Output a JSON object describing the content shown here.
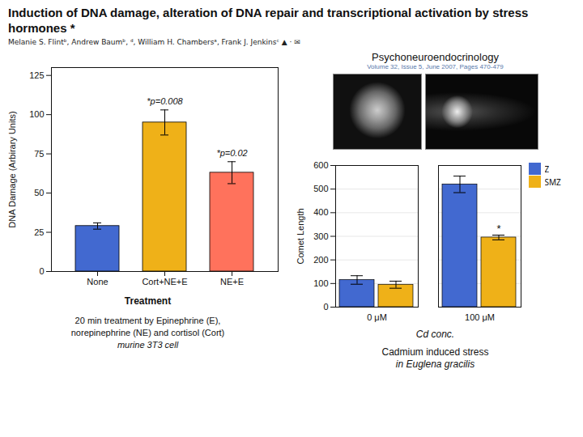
{
  "chart_data": [
    {
      "type": "bar",
      "title": "Induction of DNA damage, alteration of DNA repair and transcriptional activation by stress hormones *",
      "subtitle": "Melanie S. Flintᵇ, Andrew Baumᵇ, ᵈ, William H. Chambersᵃ, Frank J. Jenkinsᶜ  ▲ · ✉",
      "categories": [
        "None",
        "Cort+NE+E",
        "NE+E"
      ],
      "values": [
        29,
        95,
        63
      ],
      "errors": [
        2,
        8,
        7
      ],
      "xlabel": "Treatment",
      "ylabel": "DNA Damage (Arbirary Units)",
      "ylim": [
        0,
        130
      ],
      "yticks": [
        0,
        25,
        50,
        75,
        100,
        125
      ],
      "grid": false,
      "annotations": [
        {
          "text": "*p=0.008",
          "category": "Cort+NE+E"
        },
        {
          "text": "*p=0.02",
          "category": "NE+E"
        }
      ],
      "caption": [
        "20 min treatment by Epinephrine (E),",
        "norepinephrine (NE) and cortisol (Cort)",
        "murine 3T3 cell"
      ]
    },
    {
      "type": "bar",
      "title": "Psychoneuroendocrinology",
      "subtitle": "Volume 32, Issue 5, June 2007, Pages 470-479",
      "categories": [
        "0 μM",
        "100 μM"
      ],
      "series": [
        {
          "name": "Z",
          "values": [
            115,
            520
          ],
          "errors": [
            18,
            35
          ]
        },
        {
          "name": "SMZ",
          "values": [
            95,
            295
          ],
          "errors": [
            15,
            10
          ]
        }
      ],
      "xlabel": "Cd conc.",
      "ylabel": "Comet Length",
      "ylim": [
        0,
        600
      ],
      "yticks": [
        0,
        100,
        200,
        300,
        400,
        500,
        600
      ],
      "grid": true,
      "legend": "upper right",
      "annotations": [
        {
          "text": "*",
          "category": "100 μM",
          "series": "SMZ"
        }
      ],
      "caption": [
        "Cadmium induced stress",
        "in Euglena gracilis"
      ]
    }
  ]
}
